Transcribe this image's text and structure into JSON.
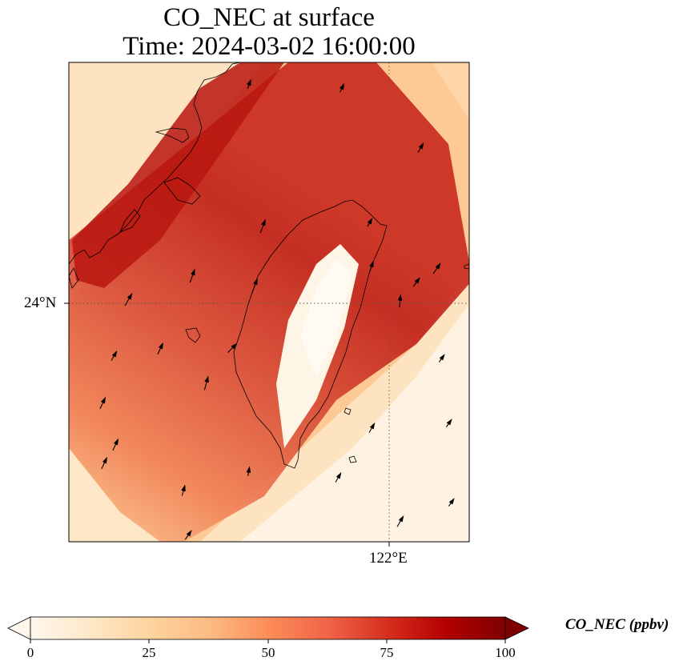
{
  "title": {
    "line1": "CO_NEC at surface",
    "line2": "Time: 2024-03-02 16:00:00"
  },
  "map": {
    "lat_tick": "24°N",
    "lon_tick": "122°E"
  },
  "colorbar": {
    "label": "CO_NEC (ppbv)",
    "ticks": [
      "0",
      "25",
      "50",
      "75",
      "100"
    ],
    "min": 0,
    "max": 100,
    "colormap": "OrRd",
    "extend": "both",
    "colors": [
      "#fff7ec",
      "#fee8c8",
      "#fdd49e",
      "#fdbb84",
      "#fc8d59",
      "#ef6548",
      "#d7301f",
      "#b30000",
      "#7f0000"
    ]
  }
}
